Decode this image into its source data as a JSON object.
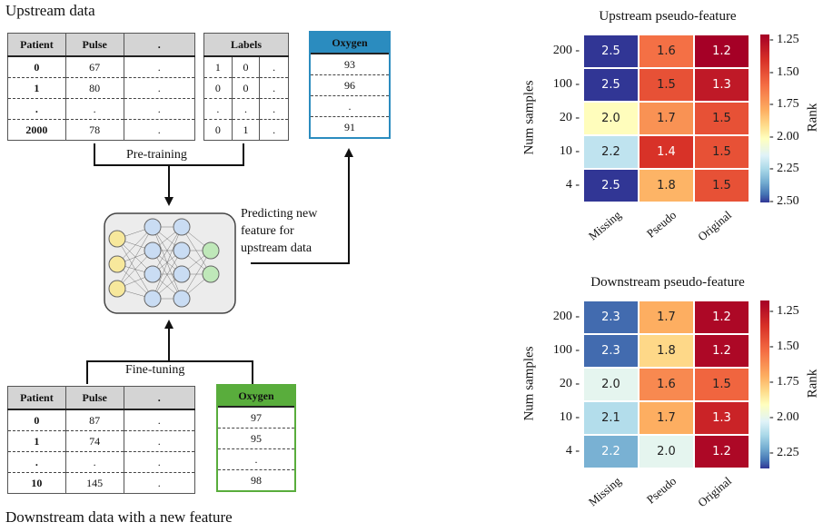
{
  "upstream_title": "Upstream data",
  "downstream_title": "Downstream data with a new feature",
  "up_table": {
    "headers": [
      "Patient",
      "Pulse",
      "."
    ],
    "rows": [
      [
        "0",
        "67",
        "."
      ],
      [
        "1",
        "80",
        "."
      ],
      [
        ".",
        ".",
        "."
      ],
      [
        "2000",
        "78",
        "."
      ]
    ]
  },
  "labels_table": {
    "header": "Labels",
    "rows": [
      [
        "1",
        "0",
        "."
      ],
      [
        "0",
        "0",
        "."
      ],
      [
        ".",
        ".",
        "."
      ],
      [
        "0",
        "1",
        "."
      ]
    ]
  },
  "up_oxygen": {
    "header": "Oxygen",
    "rows": [
      "93",
      "96",
      ".",
      "91"
    ],
    "color": "#2b8cbf"
  },
  "down_table": {
    "headers": [
      "Patient",
      "Pulse",
      "."
    ],
    "rows": [
      [
        "0",
        "87",
        "."
      ],
      [
        "1",
        "74",
        "."
      ],
      [
        ".",
        ".",
        "."
      ],
      [
        "10",
        "145",
        "."
      ]
    ]
  },
  "down_oxygen": {
    "header": "Oxygen",
    "rows": [
      "97",
      "95",
      ".",
      "98"
    ],
    "color": "#59ad3c"
  },
  "pretraining_label": "Pre-training",
  "finetuning_label": "Fine-tuning",
  "predicting_label": [
    "Predicting new",
    "feature for",
    "upstream data"
  ],
  "chart_data": [
    {
      "type": "heatmap",
      "title": "Upstream pseudo-feature",
      "xlabel": "",
      "ylabel": "Num samples",
      "colorbar_label": "Rank",
      "x_categories": [
        "Missing",
        "Pseudo",
        "Original"
      ],
      "y_categories": [
        "200",
        "100",
        "20",
        "10",
        "4"
      ],
      "values": [
        [
          2.5,
          1.6,
          1.2
        ],
        [
          2.5,
          1.5,
          1.3
        ],
        [
          2.0,
          1.7,
          1.5
        ],
        [
          2.2,
          1.4,
          1.5
        ],
        [
          2.5,
          1.8,
          1.5
        ]
      ],
      "colorbar_ticks": [
        "1.25",
        "1.50",
        "1.75",
        "2.00",
        "2.25",
        "2.50"
      ],
      "colorbar_range": [
        1.2,
        2.5
      ]
    },
    {
      "type": "heatmap",
      "title": "Downstream pseudo-feature",
      "xlabel": "",
      "ylabel": "Num samples",
      "colorbar_label": "Rank",
      "x_categories": [
        "Missing",
        "Pseudo",
        "Original"
      ],
      "y_categories": [
        "200",
        "100",
        "20",
        "10",
        "4"
      ],
      "values": [
        [
          2.3,
          1.7,
          1.2
        ],
        [
          2.3,
          1.8,
          1.2
        ],
        [
          2.0,
          1.6,
          1.5
        ],
        [
          2.1,
          1.7,
          1.3
        ],
        [
          2.2,
          2.0,
          1.2
        ]
      ],
      "colorbar_ticks": [
        "1.25",
        "1.50",
        "1.75",
        "2.00",
        "2.25"
      ],
      "colorbar_range": [
        1.17,
        2.35
      ]
    }
  ]
}
